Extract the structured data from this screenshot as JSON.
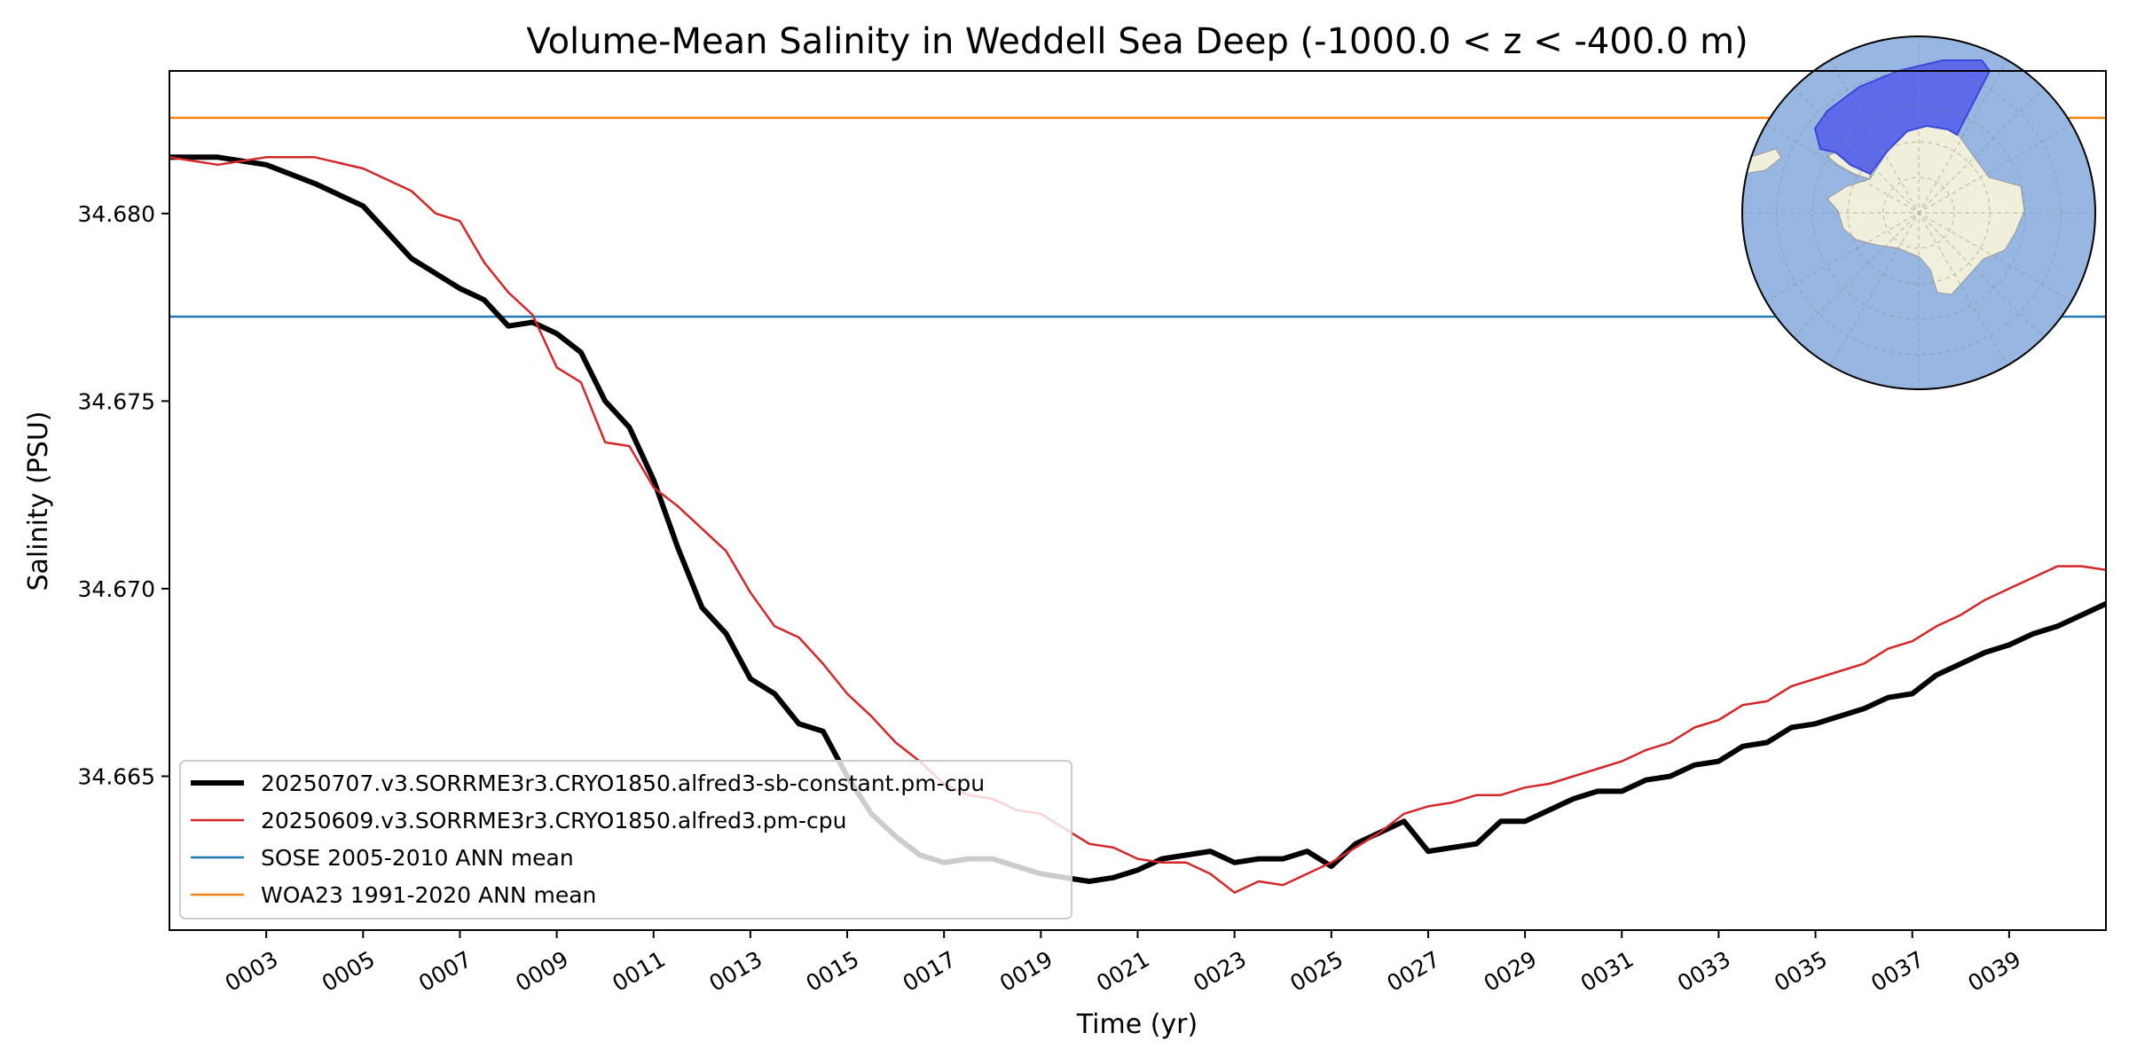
{
  "chart_data": {
    "type": "line",
    "title": "Volume-Mean Salinity in Weddell Sea Deep (-1000.0 < z < -400.0 m)",
    "xlabel": "Time (yr)",
    "ylabel": "Salinity (PSU)",
    "xlim": [
      1,
      41
    ],
    "ylim": [
      34.6609,
      34.6838
    ],
    "x_ticks": [
      3,
      5,
      7,
      9,
      11,
      13,
      15,
      17,
      19,
      21,
      23,
      25,
      27,
      29,
      31,
      33,
      35,
      37,
      39
    ],
    "x_tick_labels": [
      "0003",
      "0005",
      "0007",
      "0009",
      "0011",
      "0013",
      "0015",
      "0017",
      "0019",
      "0021",
      "0023",
      "0025",
      "0027",
      "0029",
      "0031",
      "0033",
      "0035",
      "0037",
      "0039"
    ],
    "y_ticks": [
      34.665,
      34.67,
      34.675,
      34.68
    ],
    "y_tick_labels": [
      "34.665",
      "34.670",
      "34.675",
      "34.680"
    ],
    "grid": false,
    "legend_position": "lower-left",
    "series": [
      {
        "name": "20250707.v3.SORRME3r3.CRYO1850.alfred3-sb-constant.pm-cpu",
        "color": "#000000",
        "style": "thick",
        "x": [
          1.0,
          2.0,
          3.0,
          4.0,
          5.0,
          6.0,
          7.0,
          7.5,
          8.0,
          8.5,
          9.0,
          9.5,
          10.0,
          10.5,
          11.0,
          11.5,
          12.0,
          12.5,
          13.0,
          13.5,
          14.0,
          14.5,
          15.0,
          15.5,
          16.0,
          16.5,
          17.0,
          17.5,
          18.0,
          18.5,
          19.0,
          19.5,
          20.0,
          20.5,
          21.0,
          21.5,
          22.0,
          22.5,
          23.0,
          23.5,
          24.0,
          24.5,
          25.0,
          25.5,
          26.0,
          26.5,
          27.0,
          27.5,
          28.0,
          28.5,
          29.0,
          29.5,
          30.0,
          30.5,
          31.0,
          31.5,
          32.0,
          32.5,
          33.0,
          33.5,
          34.0,
          34.5,
          35.0,
          35.5,
          36.0,
          36.5,
          37.0,
          37.5,
          38.0,
          38.5,
          39.0,
          39.5,
          40.0,
          40.5,
          41.0
        ],
        "y": [
          34.6815,
          34.6815,
          34.6813,
          34.6808,
          34.6802,
          34.6788,
          34.678,
          34.6777,
          34.677,
          34.6771,
          34.6768,
          34.6763,
          34.675,
          34.6743,
          34.6729,
          34.6711,
          34.6695,
          34.6688,
          34.6676,
          34.6672,
          34.6664,
          34.6662,
          34.665,
          34.664,
          34.6634,
          34.6629,
          34.6627,
          34.6628,
          34.6628,
          34.6626,
          34.6624,
          34.6623,
          34.6622,
          34.6623,
          34.6625,
          34.6628,
          34.6629,
          34.663,
          34.6627,
          34.6628,
          34.6628,
          34.663,
          34.6626,
          34.6632,
          34.6635,
          34.6638,
          34.663,
          34.6631,
          34.6632,
          34.6638,
          34.6638,
          34.6641,
          34.6644,
          34.6646,
          34.6646,
          34.6649,
          34.665,
          34.6653,
          34.6654,
          34.6658,
          34.6659,
          34.6663,
          34.6664,
          34.6666,
          34.6668,
          34.6671,
          34.6672,
          34.6677,
          34.668,
          34.6683,
          34.6685,
          34.6688,
          34.669,
          34.6693,
          34.6696
        ]
      },
      {
        "name": "20250609.v3.SORRME3r3.CRYO1850.alfred3.pm-cpu",
        "color": "#d62728",
        "style": "thin",
        "x": [
          1.0,
          2.0,
          3.0,
          4.0,
          5.0,
          6.0,
          6.5,
          7.0,
          7.5,
          8.0,
          8.5,
          9.0,
          9.5,
          10.0,
          10.5,
          11.0,
          11.5,
          12.0,
          12.5,
          13.0,
          13.5,
          14.0,
          14.5,
          15.0,
          15.5,
          16.0,
          16.5,
          17.0,
          17.5,
          18.0,
          18.5,
          19.0,
          19.5,
          20.0,
          20.5,
          21.0,
          21.5,
          22.0,
          22.5,
          23.0,
          23.5,
          24.0,
          24.5,
          25.0,
          25.5,
          26.0,
          26.5,
          27.0,
          27.5,
          28.0,
          28.5,
          29.0,
          29.5,
          30.0,
          30.5,
          31.0,
          31.5,
          32.0,
          32.5,
          33.0,
          33.5,
          34.0,
          34.5,
          35.0,
          35.5,
          36.0,
          36.5,
          37.0,
          37.5,
          38.0,
          38.5,
          39.0,
          39.5,
          40.0,
          40.5,
          41.0
        ],
        "y": [
          34.6815,
          34.6813,
          34.6815,
          34.6815,
          34.6812,
          34.6806,
          34.68,
          34.6798,
          34.6787,
          34.6779,
          34.6773,
          34.6759,
          34.6755,
          34.6739,
          34.6738,
          34.6727,
          34.6722,
          34.6716,
          34.671,
          34.6699,
          34.669,
          34.6687,
          34.668,
          34.6672,
          34.6666,
          34.6659,
          34.6654,
          34.6648,
          34.6645,
          34.6644,
          34.6641,
          34.664,
          34.6636,
          34.6632,
          34.6631,
          34.6628,
          34.6627,
          34.6627,
          34.6624,
          34.6619,
          34.6622,
          34.6621,
          34.6624,
          34.6627,
          34.6631,
          34.6635,
          34.664,
          34.6642,
          34.6643,
          34.6645,
          34.6645,
          34.6647,
          34.6648,
          34.665,
          34.6652,
          34.6654,
          34.6657,
          34.6659,
          34.6663,
          34.6665,
          34.6669,
          34.667,
          34.6674,
          34.6676,
          34.6678,
          34.668,
          34.6684,
          34.6686,
          34.669,
          34.6693,
          34.6697,
          34.67,
          34.6703,
          34.6706,
          34.6706,
          34.6705
        ]
      },
      {
        "name": "SOSE 2005-2010 ANN mean",
        "color": "#1f77b4",
        "style": "hline",
        "y": 34.67725
      },
      {
        "name": "WOA23 1991-2020 ANN mean",
        "color": "#ff7f0e",
        "style": "hline",
        "y": 34.68255
      }
    ],
    "inset_map": {
      "projection": "south-polar-stereographic",
      "ocean_color": "#97b6e1",
      "land_color": "#efefdb",
      "region_color": "#5a64ec",
      "region": "Weddell Sea"
    }
  }
}
